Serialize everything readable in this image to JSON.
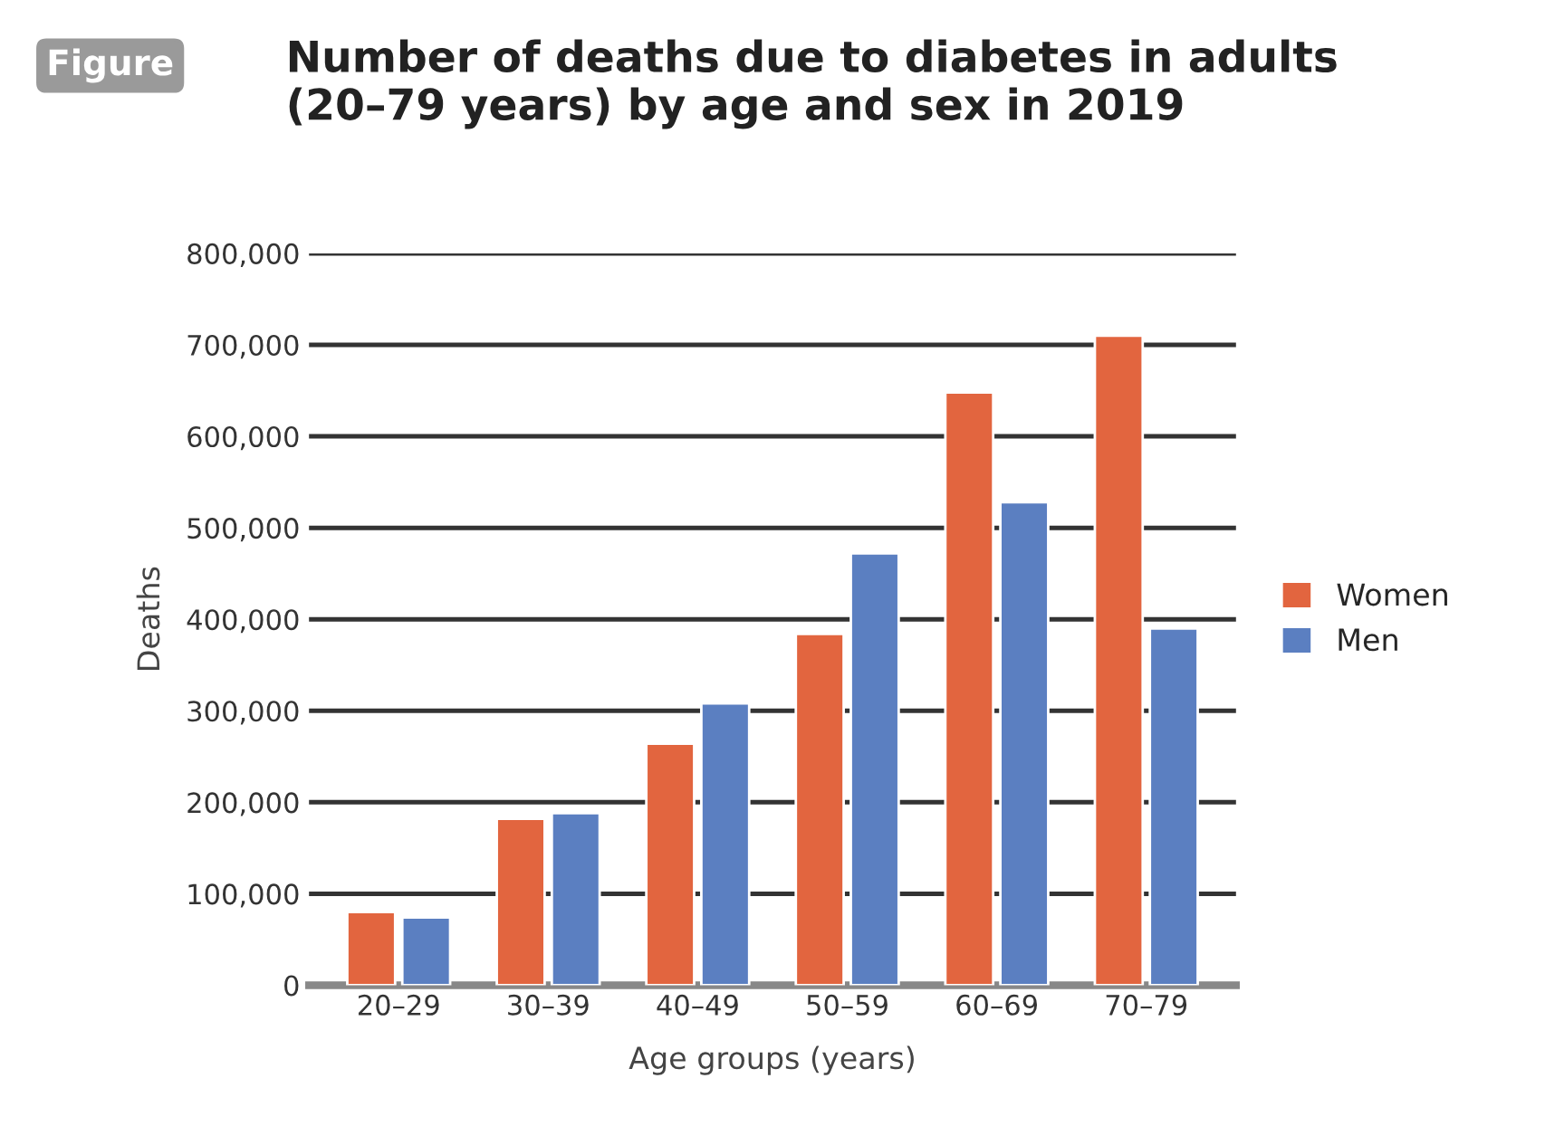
{
  "chart_data": {
    "type": "bar",
    "title": "Number of deaths due to diabetes in adults\n(20–79 years) by age and sex in 2019",
    "annotations": [
      "Figure"
    ],
    "xlabel": "Age groups (years)",
    "ylabel": "Deaths",
    "categories": [
      "20–29",
      "30–39",
      "40–49",
      "50–59",
      "60–69",
      "70–79"
    ],
    "series": [
      {
        "name": "Women",
        "color": "#e2653f",
        "values": [
          80000,
          182000,
          264000,
          384000,
          648000,
          710000
        ]
      },
      {
        "name": "Men",
        "color": "#5b7fc1",
        "values": [
          74000,
          188000,
          308000,
          472000,
          528000,
          390000
        ]
      }
    ],
    "ylim": [
      0,
      800000
    ],
    "yticks": [
      {
        "value": 0,
        "label": "0"
      },
      {
        "value": 100000,
        "label": "100,000"
      },
      {
        "value": 200000,
        "label": "200,000"
      },
      {
        "value": 300000,
        "label": "300,000"
      },
      {
        "value": 400000,
        "label": "400,000"
      },
      {
        "value": 500000,
        "label": "500,000"
      },
      {
        "value": 600000,
        "label": "600,000"
      },
      {
        "value": 700000,
        "label": "700,000"
      },
      {
        "value": 800000,
        "label": "800,000"
      }
    ],
    "grid": "y",
    "legend": "right"
  }
}
